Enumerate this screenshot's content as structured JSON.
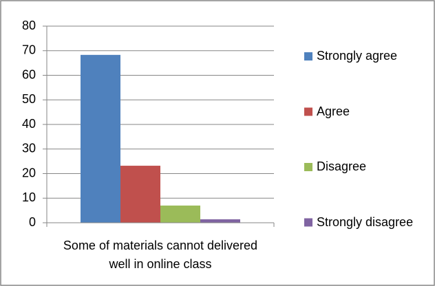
{
  "chart_data": {
    "type": "bar",
    "categories": [
      "Some of materials cannot delivered well in online class"
    ],
    "series": [
      {
        "name": "Strongly agree",
        "color": "#4f81bd",
        "values": [
          68.3
        ]
      },
      {
        "name": "Agree",
        "color": "#c0504d",
        "values": [
          23.2
        ]
      },
      {
        "name": "Disagree",
        "color": "#9bbb59",
        "values": [
          7
        ]
      },
      {
        "name": "Strongly disagree",
        "color": "#8064a2",
        "values": [
          1.4
        ]
      }
    ],
    "ylim": [
      0,
      80
    ],
    "yticks": [
      0,
      10,
      20,
      30,
      40,
      50,
      60,
      70,
      80
    ],
    "grid": true,
    "legend": "right"
  }
}
